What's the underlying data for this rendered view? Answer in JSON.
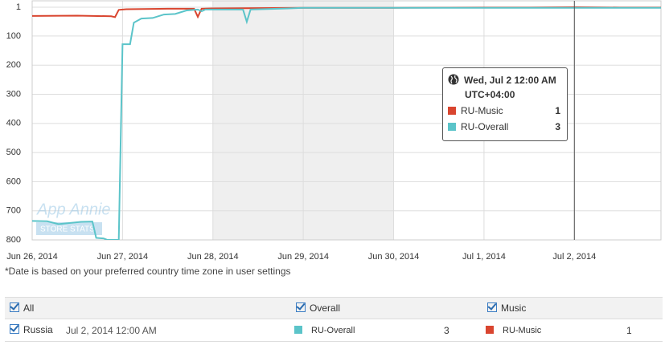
{
  "chart_data": {
    "type": "line",
    "y_inverted": true,
    "ylim": [
      1,
      800
    ],
    "yticks": [
      1,
      100,
      200,
      300,
      400,
      500,
      600,
      700,
      800
    ],
    "xlim": [
      "2014-06-26T00:00",
      "2014-07-02T23:00"
    ],
    "xticks": [
      {
        "value": "2014-06-26T00:00",
        "label": "Jun 26, 2014"
      },
      {
        "value": "2014-06-27T00:00",
        "label": "Jun 27, 2014"
      },
      {
        "value": "2014-06-28T00:00",
        "label": "Jun 28, 2014"
      },
      {
        "value": "2014-06-29T00:00",
        "label": "Jun 29, 2014"
      },
      {
        "value": "2014-06-30T00:00",
        "label": "Jun 30, 2014"
      },
      {
        "value": "2014-07-01T00:00",
        "label": "Jul 1, 2014"
      },
      {
        "value": "2014-07-02T00:00",
        "label": "Jul 2, 2014"
      }
    ],
    "grid": true,
    "shaded_range": [
      "2014-06-28T00:00",
      "2014-06-30T00:00"
    ],
    "watermark": [
      "App Annie",
      "STORE STATS"
    ],
    "series": [
      {
        "name": "RU-Music",
        "color": "#d9452f",
        "x": [
          "2014-06-26T00:00",
          "2014-06-26T12:00",
          "2014-06-26T21:00",
          "2014-06-26T22:00",
          "2014-06-26T23:00",
          "2014-06-27T01:00",
          "2014-06-27T12:00",
          "2014-06-27T19:00",
          "2014-06-27T20:00",
          "2014-06-27T21:00",
          "2014-06-28T00:00",
          "2014-06-28T12:00",
          "2014-06-29T00:00",
          "2014-06-30T00:00",
          "2014-07-01T00:00",
          "2014-07-01T12:00",
          "2014-07-02T00:00",
          "2014-07-02T12:00",
          "2014-07-02T23:00"
        ],
        "values": [
          31,
          30,
          32,
          35,
          10,
          8,
          6,
          6,
          34,
          6,
          5,
          4,
          3,
          3,
          2,
          2,
          1,
          2,
          2
        ]
      },
      {
        "name": "RU-Overall",
        "color": "#5bc4c9",
        "x": [
          "2014-06-26T00:00",
          "2014-06-26T04:00",
          "2014-06-26T07:00",
          "2014-06-26T13:00",
          "2014-06-26T16:00",
          "2014-06-26T17:00",
          "2014-06-26T19:00",
          "2014-06-26T20:00",
          "2014-06-26T23:00",
          "2014-06-27T00:00",
          "2014-06-27T02:00",
          "2014-06-27T03:00",
          "2014-06-27T05:00",
          "2014-06-27T08:00",
          "2014-06-27T11:00",
          "2014-06-27T14:00",
          "2014-06-27T17:00",
          "2014-06-27T20:00",
          "2014-06-27T21:00",
          "2014-06-27T22:00",
          "2014-06-28T08:00",
          "2014-06-28T09:00",
          "2014-06-28T10:00",
          "2014-06-28T20:00",
          "2014-06-29T00:00",
          "2014-06-30T00:00",
          "2014-07-01T00:00",
          "2014-07-02T00:00",
          "2014-07-02T23:00"
        ],
        "values": [
          735,
          736,
          746,
          738,
          737,
          793,
          795,
          800,
          800,
          128,
          128,
          54,
          40,
          38,
          26,
          24,
          12,
          9,
          15,
          9,
          9,
          51,
          9,
          5,
          3,
          3,
          3,
          3,
          3
        ]
      }
    ],
    "tooltip": {
      "title": "Wed, Jul 2 12:00 AM",
      "subtitle": "UTC+04:00",
      "x": "2014-07-02T00:00"
    }
  },
  "note": "*Date is based on your preferred country time zone in user settings",
  "table": {
    "header": [
      "All",
      "Overall",
      "Music"
    ],
    "row": {
      "country": "Russia",
      "date": "Jul 2, 2014 12:00 AM"
    }
  }
}
